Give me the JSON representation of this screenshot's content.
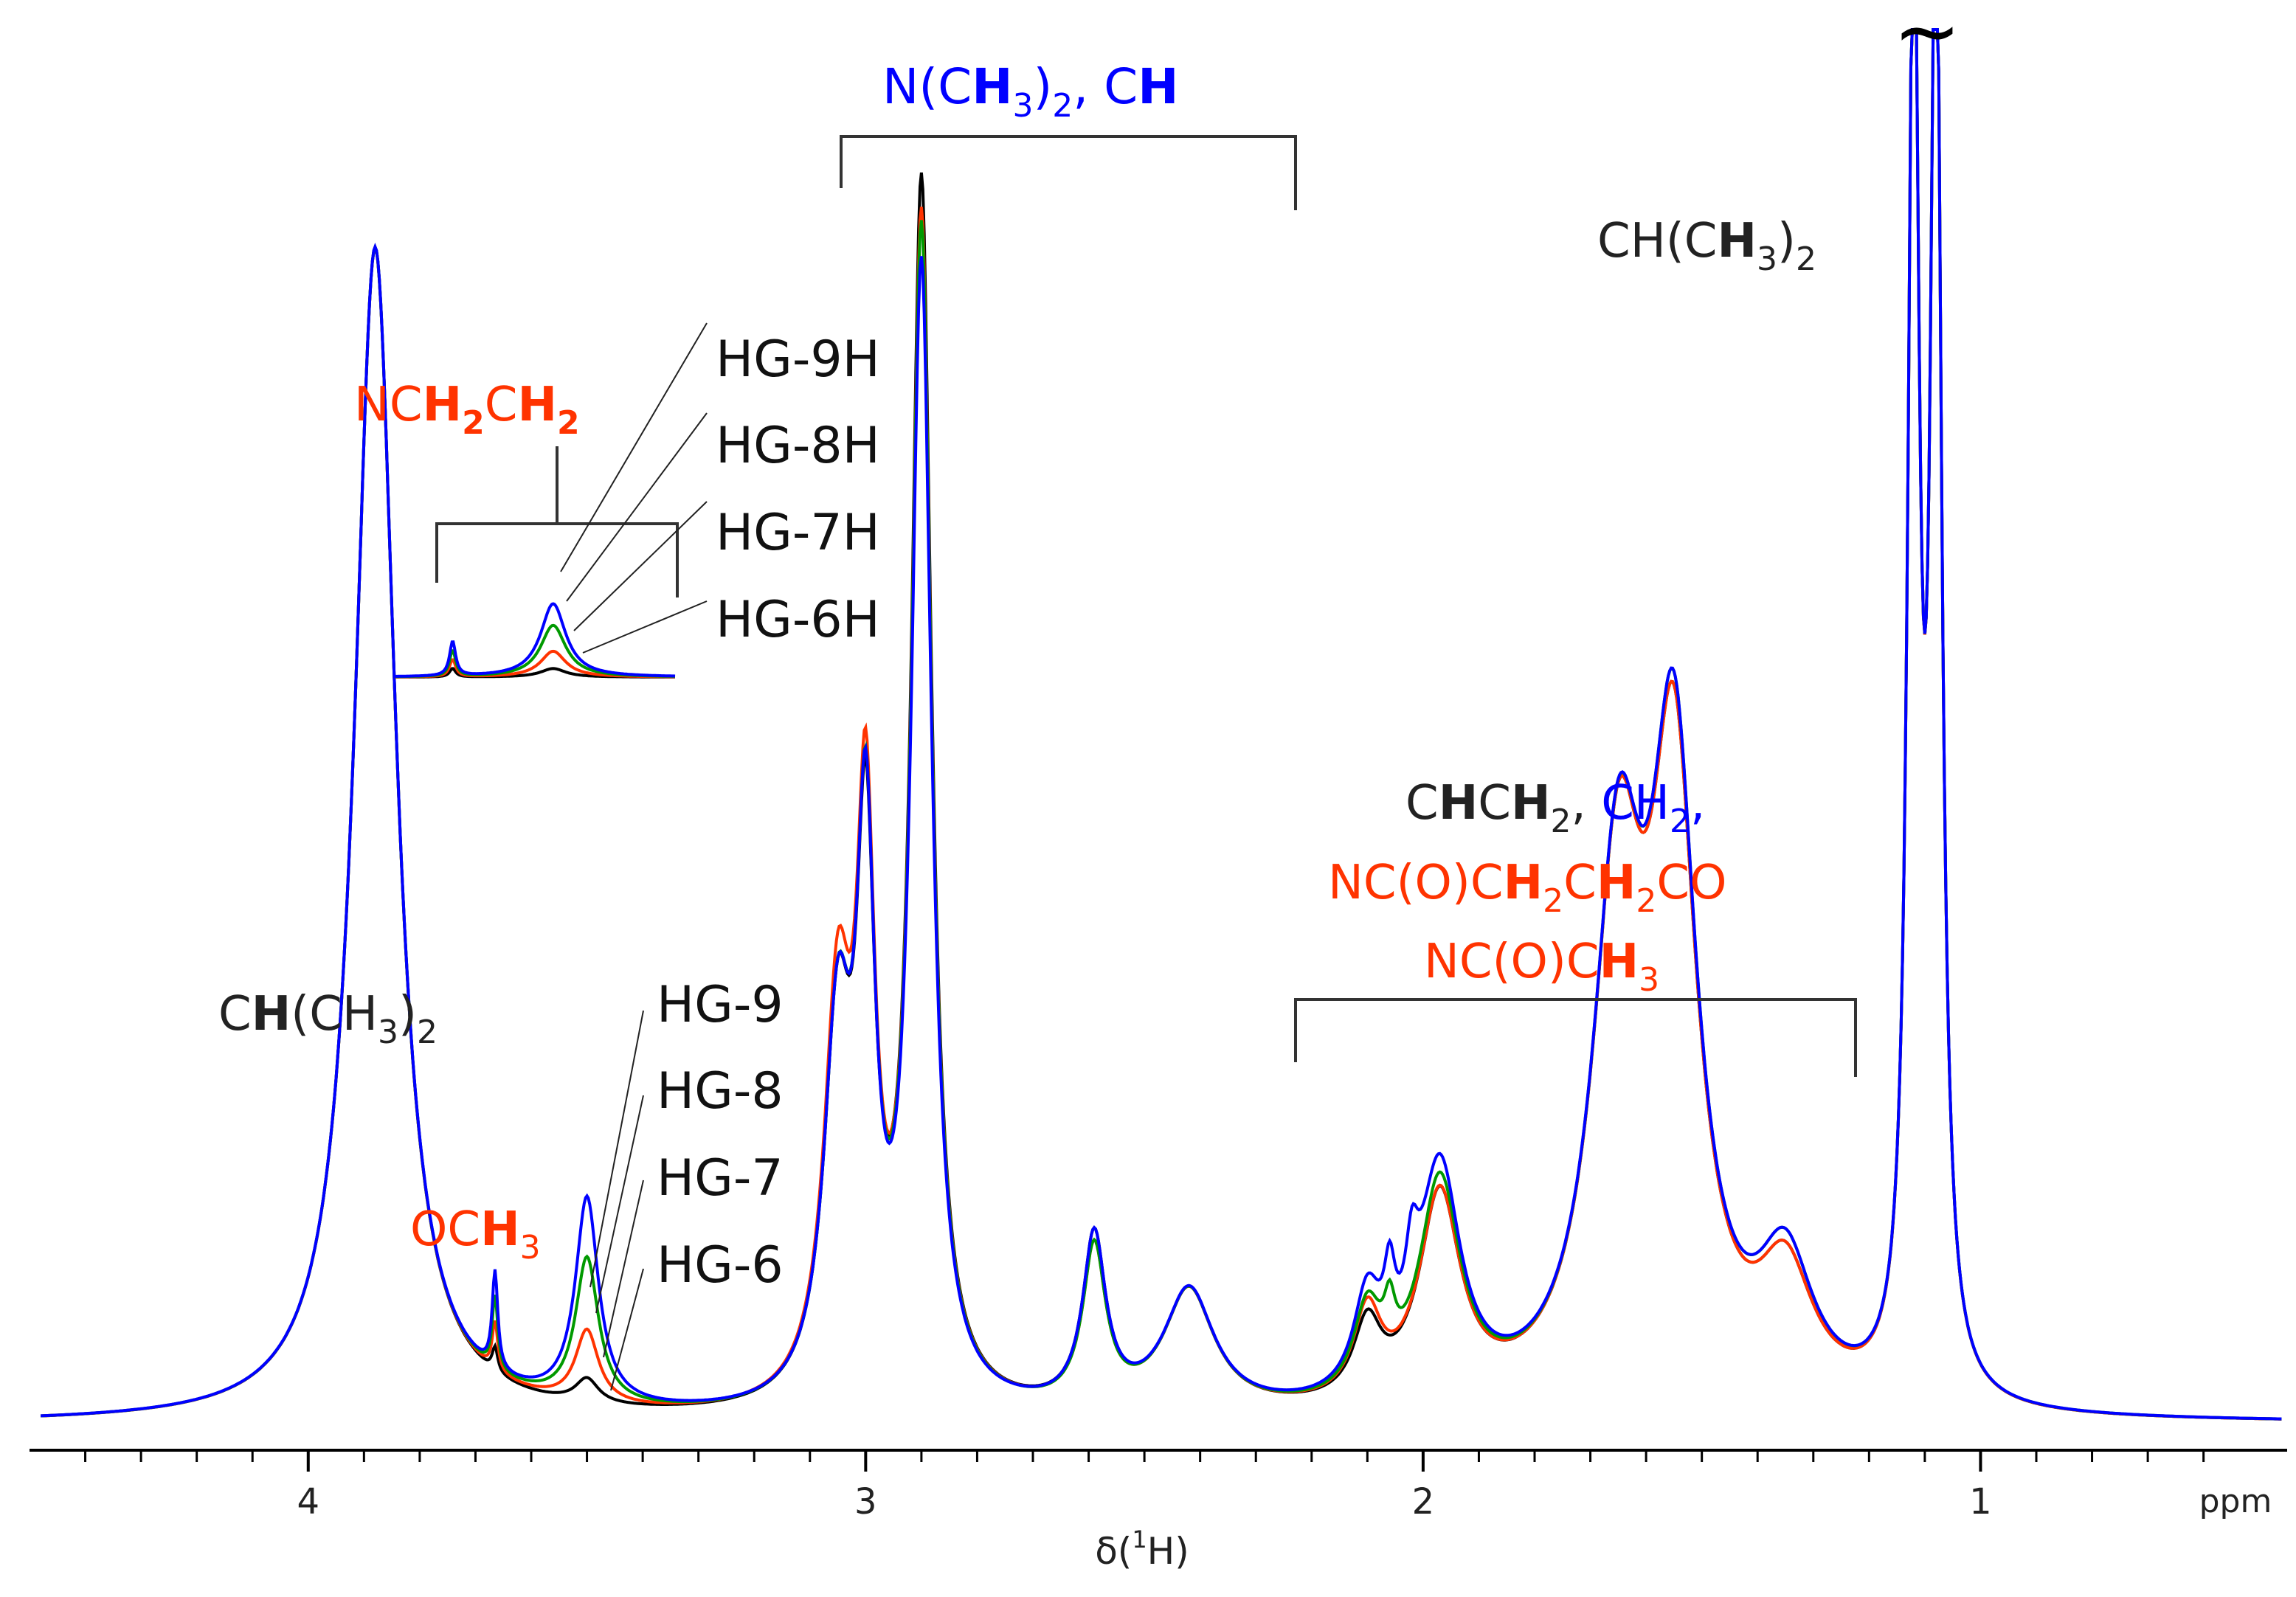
{
  "chart_data": {
    "type": "line",
    "xlabel_main": "δ(",
    "xlabel_sup": "1",
    "xlabel_tail": "H)",
    "x_unit": "ppm",
    "x_ticks": [
      "4",
      "3",
      "2",
      "1"
    ],
    "xlim": [
      4.5,
      0.45
    ],
    "x_reversed": true,
    "series": [
      {
        "name": "HG-6",
        "color": "#000000",
        "peaks": [
          [
            3.88,
            0.97,
            0.045
          ],
          [
            3.665,
            0.02,
            0.006
          ],
          [
            3.5,
            0.02,
            0.025
          ],
          [
            3.05,
            0.3,
            0.03
          ],
          [
            3.0,
            0.42,
            0.02
          ],
          [
            2.9,
            1.0,
            0.022
          ],
          [
            2.59,
            0.14,
            0.025
          ],
          [
            2.42,
            0.1,
            0.055
          ],
          [
            2.1,
            0.06,
            0.03
          ],
          [
            1.97,
            0.17,
            0.045
          ],
          [
            1.65,
            0.42,
            0.055
          ],
          [
            1.55,
            0.5,
            0.05
          ],
          [
            1.35,
            0.1,
            0.06
          ],
          [
            1.12,
            1.2,
            0.012
          ],
          [
            1.08,
            1.2,
            0.012
          ]
        ]
      },
      {
        "name": "HG-7",
        "color": "#ff3300",
        "peaks": [
          [
            3.88,
            0.97,
            0.045
          ],
          [
            3.665,
            0.04,
            0.006
          ],
          [
            3.5,
            0.06,
            0.025
          ],
          [
            3.05,
            0.32,
            0.03
          ],
          [
            3.0,
            0.44,
            0.02
          ],
          [
            2.9,
            0.97,
            0.022
          ],
          [
            2.59,
            0.13,
            0.025
          ],
          [
            2.42,
            0.1,
            0.055
          ],
          [
            2.1,
            0.07,
            0.03
          ],
          [
            1.97,
            0.17,
            0.045
          ],
          [
            1.65,
            0.42,
            0.055
          ],
          [
            1.55,
            0.5,
            0.05
          ],
          [
            1.35,
            0.1,
            0.06
          ],
          [
            1.12,
            1.2,
            0.012
          ],
          [
            1.08,
            1.2,
            0.012
          ]
        ]
      },
      {
        "name": "HG-8",
        "color": "#009900",
        "peaks": [
          [
            3.88,
            0.97,
            0.045
          ],
          [
            3.665,
            0.06,
            0.006
          ],
          [
            3.5,
            0.12,
            0.025
          ],
          [
            3.05,
            0.3,
            0.03
          ],
          [
            3.0,
            0.43,
            0.02
          ],
          [
            2.9,
            0.96,
            0.022
          ],
          [
            2.59,
            0.13,
            0.025
          ],
          [
            2.42,
            0.1,
            0.055
          ],
          [
            2.1,
            0.07,
            0.03
          ],
          [
            2.06,
            0.04,
            0.012
          ],
          [
            1.97,
            0.18,
            0.045
          ],
          [
            1.65,
            0.42,
            0.055
          ],
          [
            1.55,
            0.51,
            0.05
          ],
          [
            1.35,
            0.11,
            0.06
          ],
          [
            1.12,
            1.2,
            0.012
          ],
          [
            1.08,
            1.2,
            0.012
          ]
        ]
      },
      {
        "name": "HG-9",
        "color": "#0000ff",
        "peaks": [
          [
            3.88,
            0.97,
            0.045
          ],
          [
            3.665,
            0.08,
            0.006
          ],
          [
            3.5,
            0.17,
            0.025
          ],
          [
            3.05,
            0.3,
            0.03
          ],
          [
            3.0,
            0.43,
            0.02
          ],
          [
            2.9,
            0.93,
            0.022
          ],
          [
            2.59,
            0.14,
            0.025
          ],
          [
            2.42,
            0.1,
            0.055
          ],
          [
            2.1,
            0.08,
            0.03
          ],
          [
            2.06,
            0.06,
            0.012
          ],
          [
            2.02,
            0.06,
            0.014
          ],
          [
            1.97,
            0.19,
            0.045
          ],
          [
            1.65,
            0.42,
            0.055
          ],
          [
            1.55,
            0.51,
            0.05
          ],
          [
            1.35,
            0.11,
            0.06
          ],
          [
            1.12,
            1.2,
            0.012
          ],
          [
            1.08,
            1.2,
            0.012
          ]
        ]
      }
    ],
    "annotations": {
      "ch_methyl_top": {
        "pre": "CH(C",
        "bold": "H",
        "mid": "",
        "sub": "3",
        "post": ")",
        "sub2": "2"
      },
      "nme2": {
        "a": "N(C",
        "b": "H",
        "c": "3",
        "d": ")",
        "e": "2",
        "f": ", C",
        "g": "H"
      },
      "ch_iso": {
        "a": "C",
        "b": "H",
        "c": "(CH",
        "d": "3",
        "e": ")",
        "f": "2"
      },
      "och3": {
        "a": "OC",
        "b": "H",
        "c": "3"
      },
      "nch2ch2": {
        "a": "NC",
        "b": "H",
        "c": "2",
        "d": "C",
        "e": "H",
        "f": "2"
      },
      "chch2_line1": {
        "a": "C",
        "b": "H",
        "c": "C",
        "d": "H",
        "e": "2",
        "f": ", ",
        "g": "CH",
        "h": "2",
        "i": ","
      },
      "chch2_line2": {
        "a": "NC(O)C",
        "b": "H",
        "c": "2",
        "d": "C",
        "e": "H",
        "f": "2",
        "g": "CO"
      },
      "chch2_line3": {
        "a": "NC(O)C",
        "b": "H",
        "c": "3"
      }
    },
    "legend_top": [
      "HG-9H",
      "HG-8H",
      "HG-7H",
      "HG-6H"
    ],
    "legend_bottom": [
      "HG-9",
      "HG-8",
      "HG-7",
      "HG-6"
    ],
    "break_mark": "~"
  },
  "colors": {
    "blue": "#0000ff",
    "red": "#ff3300",
    "green": "#009900",
    "black": "#000000",
    "text": "#222222"
  }
}
